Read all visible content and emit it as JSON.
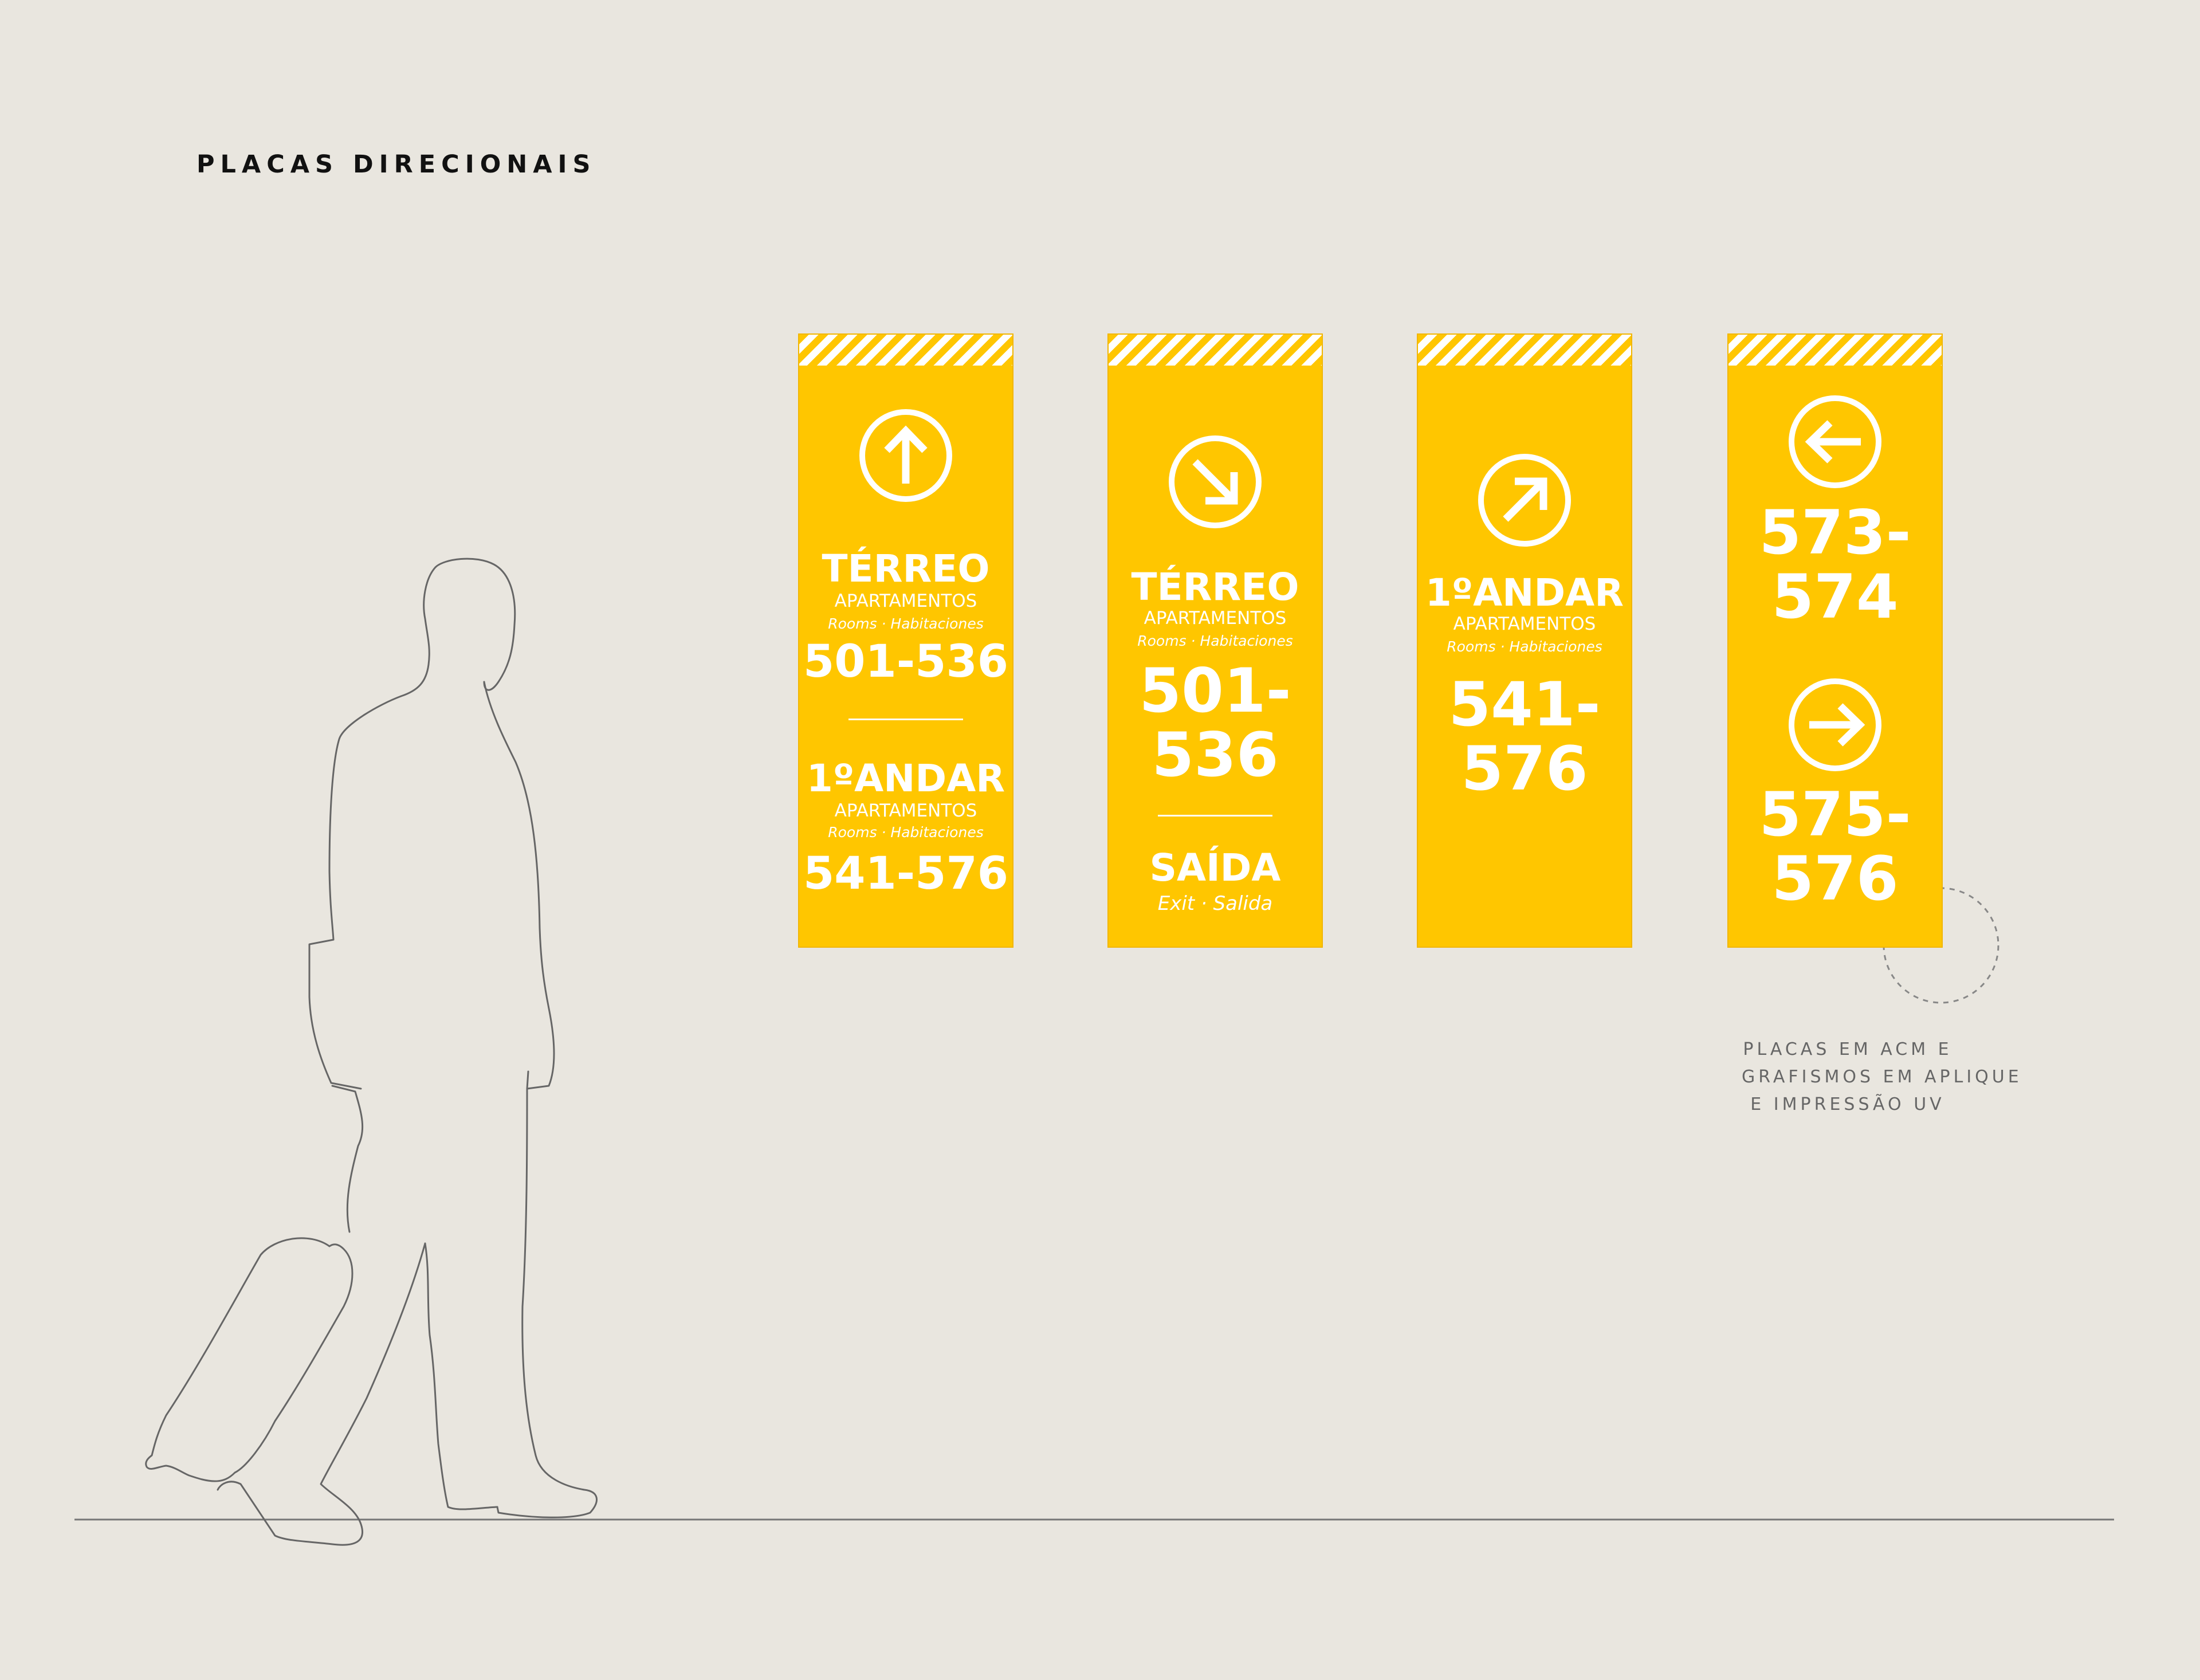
{
  "page": {
    "title": "PLACAS DIRECIONAIS",
    "background_color": "#e9e6df",
    "sign_color": "#ffc600"
  },
  "signs": [
    {
      "icon": "arrow-up-icon",
      "groups": [
        {
          "floor": "TÉRREO",
          "category": "APARTAMENTOS",
          "translation": "Rooms · Habitaciones",
          "range": "501-536"
        },
        {
          "floor": "1ºANDAR",
          "category": "APARTAMENTOS",
          "translation": "Rooms · Habitaciones",
          "range": "541-576"
        }
      ]
    },
    {
      "icon": "arrow-down-right-icon",
      "floor": "TÉRREO",
      "category": "APARTAMENTOS",
      "translation": "Rooms · Habitaciones",
      "range_line1": "501-",
      "range_line2": "536",
      "exit_label": "SAÍDA",
      "exit_translation": "Exit · Salida"
    },
    {
      "icon": "arrow-up-right-icon",
      "floor": "1ºANDAR",
      "category": "APARTAMENTOS",
      "translation": "Rooms · Habitaciones",
      "range_line1": "541-",
      "range_line2": "576"
    },
    {
      "entries": [
        {
          "icon": "arrow-left-icon",
          "range_line1": "573-",
          "range_line2": "574"
        },
        {
          "icon": "arrow-right-icon",
          "range_line1": "575-",
          "range_line2": "576"
        }
      ]
    }
  ],
  "note": {
    "lines": [
      "PLACAS EM ACM E",
      "GRAFISMOS EM APLIQUE",
      "E IMPRESSÃO UV"
    ]
  },
  "figure": {
    "icon": "traveler-with-suitcase-icon"
  }
}
